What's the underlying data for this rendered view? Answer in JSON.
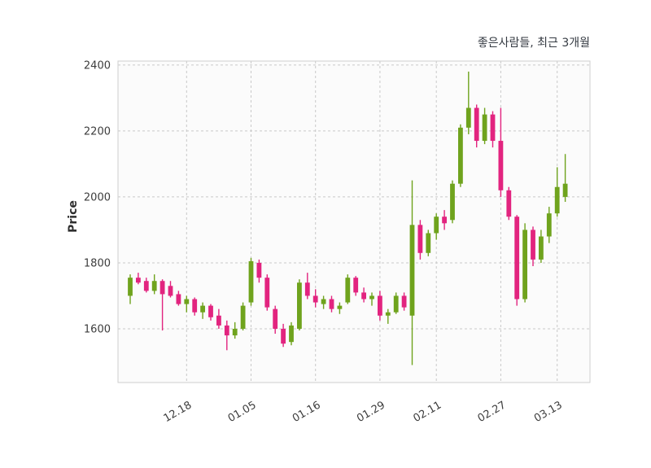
{
  "chart_data": {
    "type": "candlestick",
    "title": "좋은사람들, 최근 3개월",
    "ylabel": "Price",
    "ylim": [
      1437,
      2412
    ],
    "yticks": [
      1600,
      1800,
      2000,
      2200,
      2400
    ],
    "x_tick_labels": [
      "12.18",
      "01.05",
      "01.16",
      "01.29",
      "02.11",
      "02.27",
      "03.13"
    ],
    "x_tick_indices": [
      7,
      15,
      23,
      31,
      38,
      46,
      53
    ],
    "grid": "dashed",
    "legend": "none",
    "colors": {
      "up": "#6fa31d",
      "down": "#e2247f",
      "grid": "#c9c9c9",
      "border": "#cfcfcf",
      "text": "#3d3d3d",
      "title_text": "#343a42",
      "plot_bg": "#fbfbfb"
    },
    "candles_ohlc": [
      [
        1700,
        1765,
        1675,
        1755
      ],
      [
        1755,
        1770,
        1735,
        1740
      ],
      [
        1745,
        1755,
        1710,
        1715
      ],
      [
        1715,
        1765,
        1705,
        1745
      ],
      [
        1745,
        1750,
        1595,
        1705
      ],
      [
        1730,
        1745,
        1695,
        1700
      ],
      [
        1705,
        1715,
        1670,
        1675
      ],
      [
        1675,
        1700,
        1650,
        1690
      ],
      [
        1690,
        1695,
        1640,
        1650
      ],
      [
        1650,
        1680,
        1630,
        1670
      ],
      [
        1670,
        1675,
        1625,
        1635
      ],
      [
        1640,
        1660,
        1600,
        1610
      ],
      [
        1610,
        1625,
        1535,
        1580
      ],
      [
        1580,
        1620,
        1570,
        1600
      ],
      [
        1600,
        1680,
        1595,
        1670
      ],
      [
        1680,
        1815,
        1670,
        1805
      ],
      [
        1800,
        1810,
        1740,
        1755
      ],
      [
        1755,
        1765,
        1655,
        1665
      ],
      [
        1660,
        1670,
        1585,
        1600
      ],
      [
        1600,
        1615,
        1545,
        1555
      ],
      [
        1560,
        1620,
        1550,
        1610
      ],
      [
        1600,
        1750,
        1595,
        1740
      ],
      [
        1740,
        1770,
        1690,
        1700
      ],
      [
        1700,
        1720,
        1665,
        1680
      ],
      [
        1675,
        1700,
        1660,
        1690
      ],
      [
        1690,
        1700,
        1650,
        1660
      ],
      [
        1660,
        1680,
        1645,
        1670
      ],
      [
        1680,
        1765,
        1675,
        1755
      ],
      [
        1755,
        1760,
        1700,
        1710
      ],
      [
        1710,
        1725,
        1680,
        1690
      ],
      [
        1690,
        1710,
        1670,
        1700
      ],
      [
        1700,
        1715,
        1625,
        1640
      ],
      [
        1640,
        1660,
        1615,
        1650
      ],
      [
        1650,
        1710,
        1645,
        1700
      ],
      [
        1700,
        1710,
        1655,
        1665
      ],
      [
        1640,
        2050,
        1490,
        1915
      ],
      [
        1915,
        1930,
        1810,
        1830
      ],
      [
        1830,
        1900,
        1820,
        1890
      ],
      [
        1890,
        1950,
        1870,
        1940
      ],
      [
        1940,
        1960,
        1900,
        1920
      ],
      [
        1930,
        2050,
        1920,
        2040
      ],
      [
        2040,
        2220,
        2030,
        2210
      ],
      [
        2210,
        2380,
        2190,
        2270
      ],
      [
        2270,
        2280,
        2150,
        2170
      ],
      [
        2170,
        2270,
        2160,
        2250
      ],
      [
        2250,
        2260,
        2150,
        2170
      ],
      [
        2170,
        2270,
        2000,
        2020
      ],
      [
        2020,
        2030,
        1930,
        1940
      ],
      [
        1940,
        1945,
        1670,
        1690
      ],
      [
        1690,
        1920,
        1680,
        1900
      ],
      [
        1900,
        1910,
        1790,
        1810
      ],
      [
        1810,
        1900,
        1800,
        1880
      ],
      [
        1880,
        1970,
        1860,
        1950
      ],
      [
        1950,
        2090,
        1940,
        2030
      ],
      [
        2000,
        2130,
        1985,
        2040
      ]
    ]
  }
}
